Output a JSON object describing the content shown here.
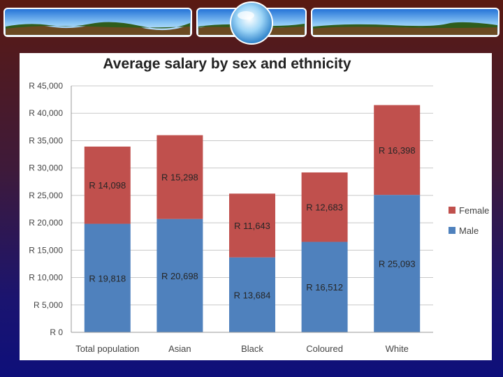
{
  "chart_data": {
    "type": "bar",
    "stacked": true,
    "title": "Average salary by sex and ethnicity",
    "categories": [
      "Total population",
      "Asian",
      "Black",
      "Coloured",
      "White"
    ],
    "series": [
      {
        "name": "Male",
        "color": "#4f81bd",
        "values": [
          19818,
          20698,
          13684,
          16512,
          25093
        ],
        "labels": [
          "R 19,818",
          "R 20,698",
          "R 13,684",
          "R 16,512",
          "R 25,093"
        ]
      },
      {
        "name": "Female",
        "color": "#c0504d",
        "values": [
          14098,
          15298,
          11643,
          12683,
          16398
        ],
        "labels": [
          "R 14,098",
          "R 15,298",
          "R 11,643",
          "R 12,683",
          "R 16,398"
        ]
      }
    ],
    "ylim": [
      0,
      45000
    ],
    "yticks": [
      0,
      5000,
      10000,
      15000,
      20000,
      25000,
      30000,
      35000,
      40000,
      45000
    ],
    "ytick_labels": [
      "R 0",
      "R 5,000",
      "R 10,000",
      "R 15,000",
      "R 20,000",
      "R 25,000",
      "R 30,000",
      "R 35,000",
      "R 40,000",
      "R 45,000"
    ],
    "legend": [
      "Female",
      "Male"
    ],
    "legend_position": "right",
    "grid": true
  }
}
